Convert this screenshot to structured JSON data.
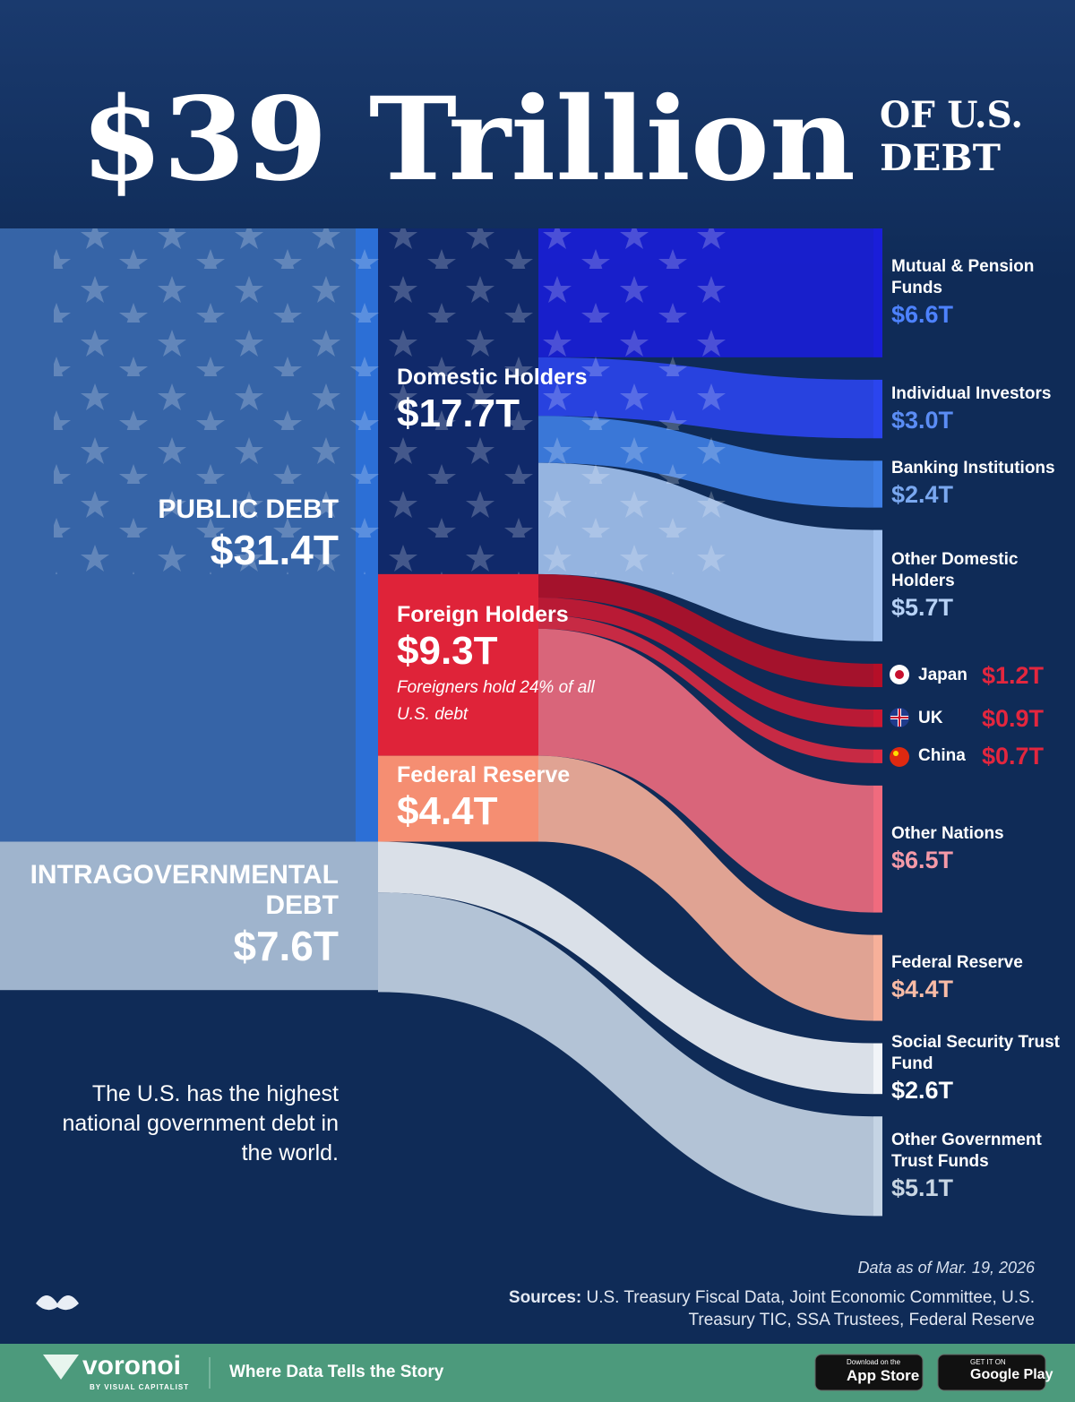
{
  "chart_data": {
    "type": "sankey",
    "title": "$39 Trillion",
    "title_suffix": [
      "OF U.S.",
      "DEBT"
    ],
    "nodes": [
      {
        "name": "PUBLIC DEBT",
        "value": 31.4,
        "value_label": "$31.4T",
        "color": "#3d6fb5",
        "children": [
          {
            "name": "Domestic Holders",
            "value": 17.7,
            "value_label": "$17.7T",
            "color": "#10296a",
            "children": [
              {
                "name": "Mutual & Pension Funds",
                "value": 6.6,
                "value_label": "$6.6T",
                "color": "#1a1ed8",
                "label_color": "#4d82ff"
              },
              {
                "name": "Individual Investors",
                "value": 3.0,
                "value_label": "$3.0T",
                "color": "#2b45ee",
                "label_color": "#5b8df5"
              },
              {
                "name": "Banking Institutions",
                "value": 2.4,
                "value_label": "$2.4T",
                "color": "#3f7fe6",
                "label_color": "#7aa8f0"
              },
              {
                "name": "Other Domestic Holders",
                "value": 5.7,
                "value_label": "$5.7T",
                "color": "#a4c3ef",
                "label_color": "#b7d2f6"
              }
            ]
          },
          {
            "name": "Foreign Holders",
            "value": 9.3,
            "value_label": "$9.3T",
            "color": "#df2339",
            "note": "Foreigners hold 24% of all U.S. debt",
            "children": [
              {
                "name": "Japan",
                "value": 1.2,
                "value_label": "$1.2T",
                "color": "#b50f28",
                "label_color": "#e3263e"
              },
              {
                "name": "UK",
                "value": 0.9,
                "value_label": "$0.9T",
                "color": "#cc1832",
                "label_color": "#e3263e"
              },
              {
                "name": "China",
                "value": 0.7,
                "value_label": "$0.7T",
                "color": "#dc2a42",
                "label_color": "#e3263e"
              },
              {
                "name": "Other Nations",
                "value": 6.5,
                "value_label": "$6.5T",
                "color": "#f06b7e",
                "label_color": "#f49aa8"
              }
            ]
          },
          {
            "name": "Federal Reserve",
            "value": 4.4,
            "value_label": "$4.4T",
            "color": "#f58e72",
            "children": [
              {
                "name": "Federal Reserve",
                "value": 4.4,
                "value_label": "$4.4T",
                "color": "#f7b09a",
                "label_color": "#f8bba6"
              }
            ]
          }
        ]
      },
      {
        "name": "INTRAGOVERNMENTAL DEBT",
        "value": 7.6,
        "value_label": "$7.6T",
        "color": "#b9cde2",
        "children": [
          {
            "name": "Social Security Trust Fund",
            "value": 2.6,
            "value_label": "$2.6T",
            "color": "#f1f4f8",
            "label_color": "#ffffff"
          },
          {
            "name": "Other Government Trust Funds",
            "value": 5.1,
            "value_label": "$5.1T",
            "color": "#c5d4e4",
            "label_color": "#c9d6e3"
          }
        ]
      }
    ],
    "note": "The U.S. has the highest national government debt in the world.",
    "date_note": "Data as of Mar. 19, 2026",
    "sources_label": "Sources:",
    "sources": "U.S. Treasury Fiscal Data, Joint Economic Committee, U.S. Treasury TIC, SSA Trustees, Federal Reserve"
  },
  "footer": {
    "brand": "voronoi",
    "brand_sub": "BY VISUAL CAPITALIST",
    "tagline": "Where Data Tells the Story",
    "app_store_small": "Download on the",
    "app_store": "App Store",
    "google_small": "GET IT ON",
    "google": "Google Play"
  }
}
